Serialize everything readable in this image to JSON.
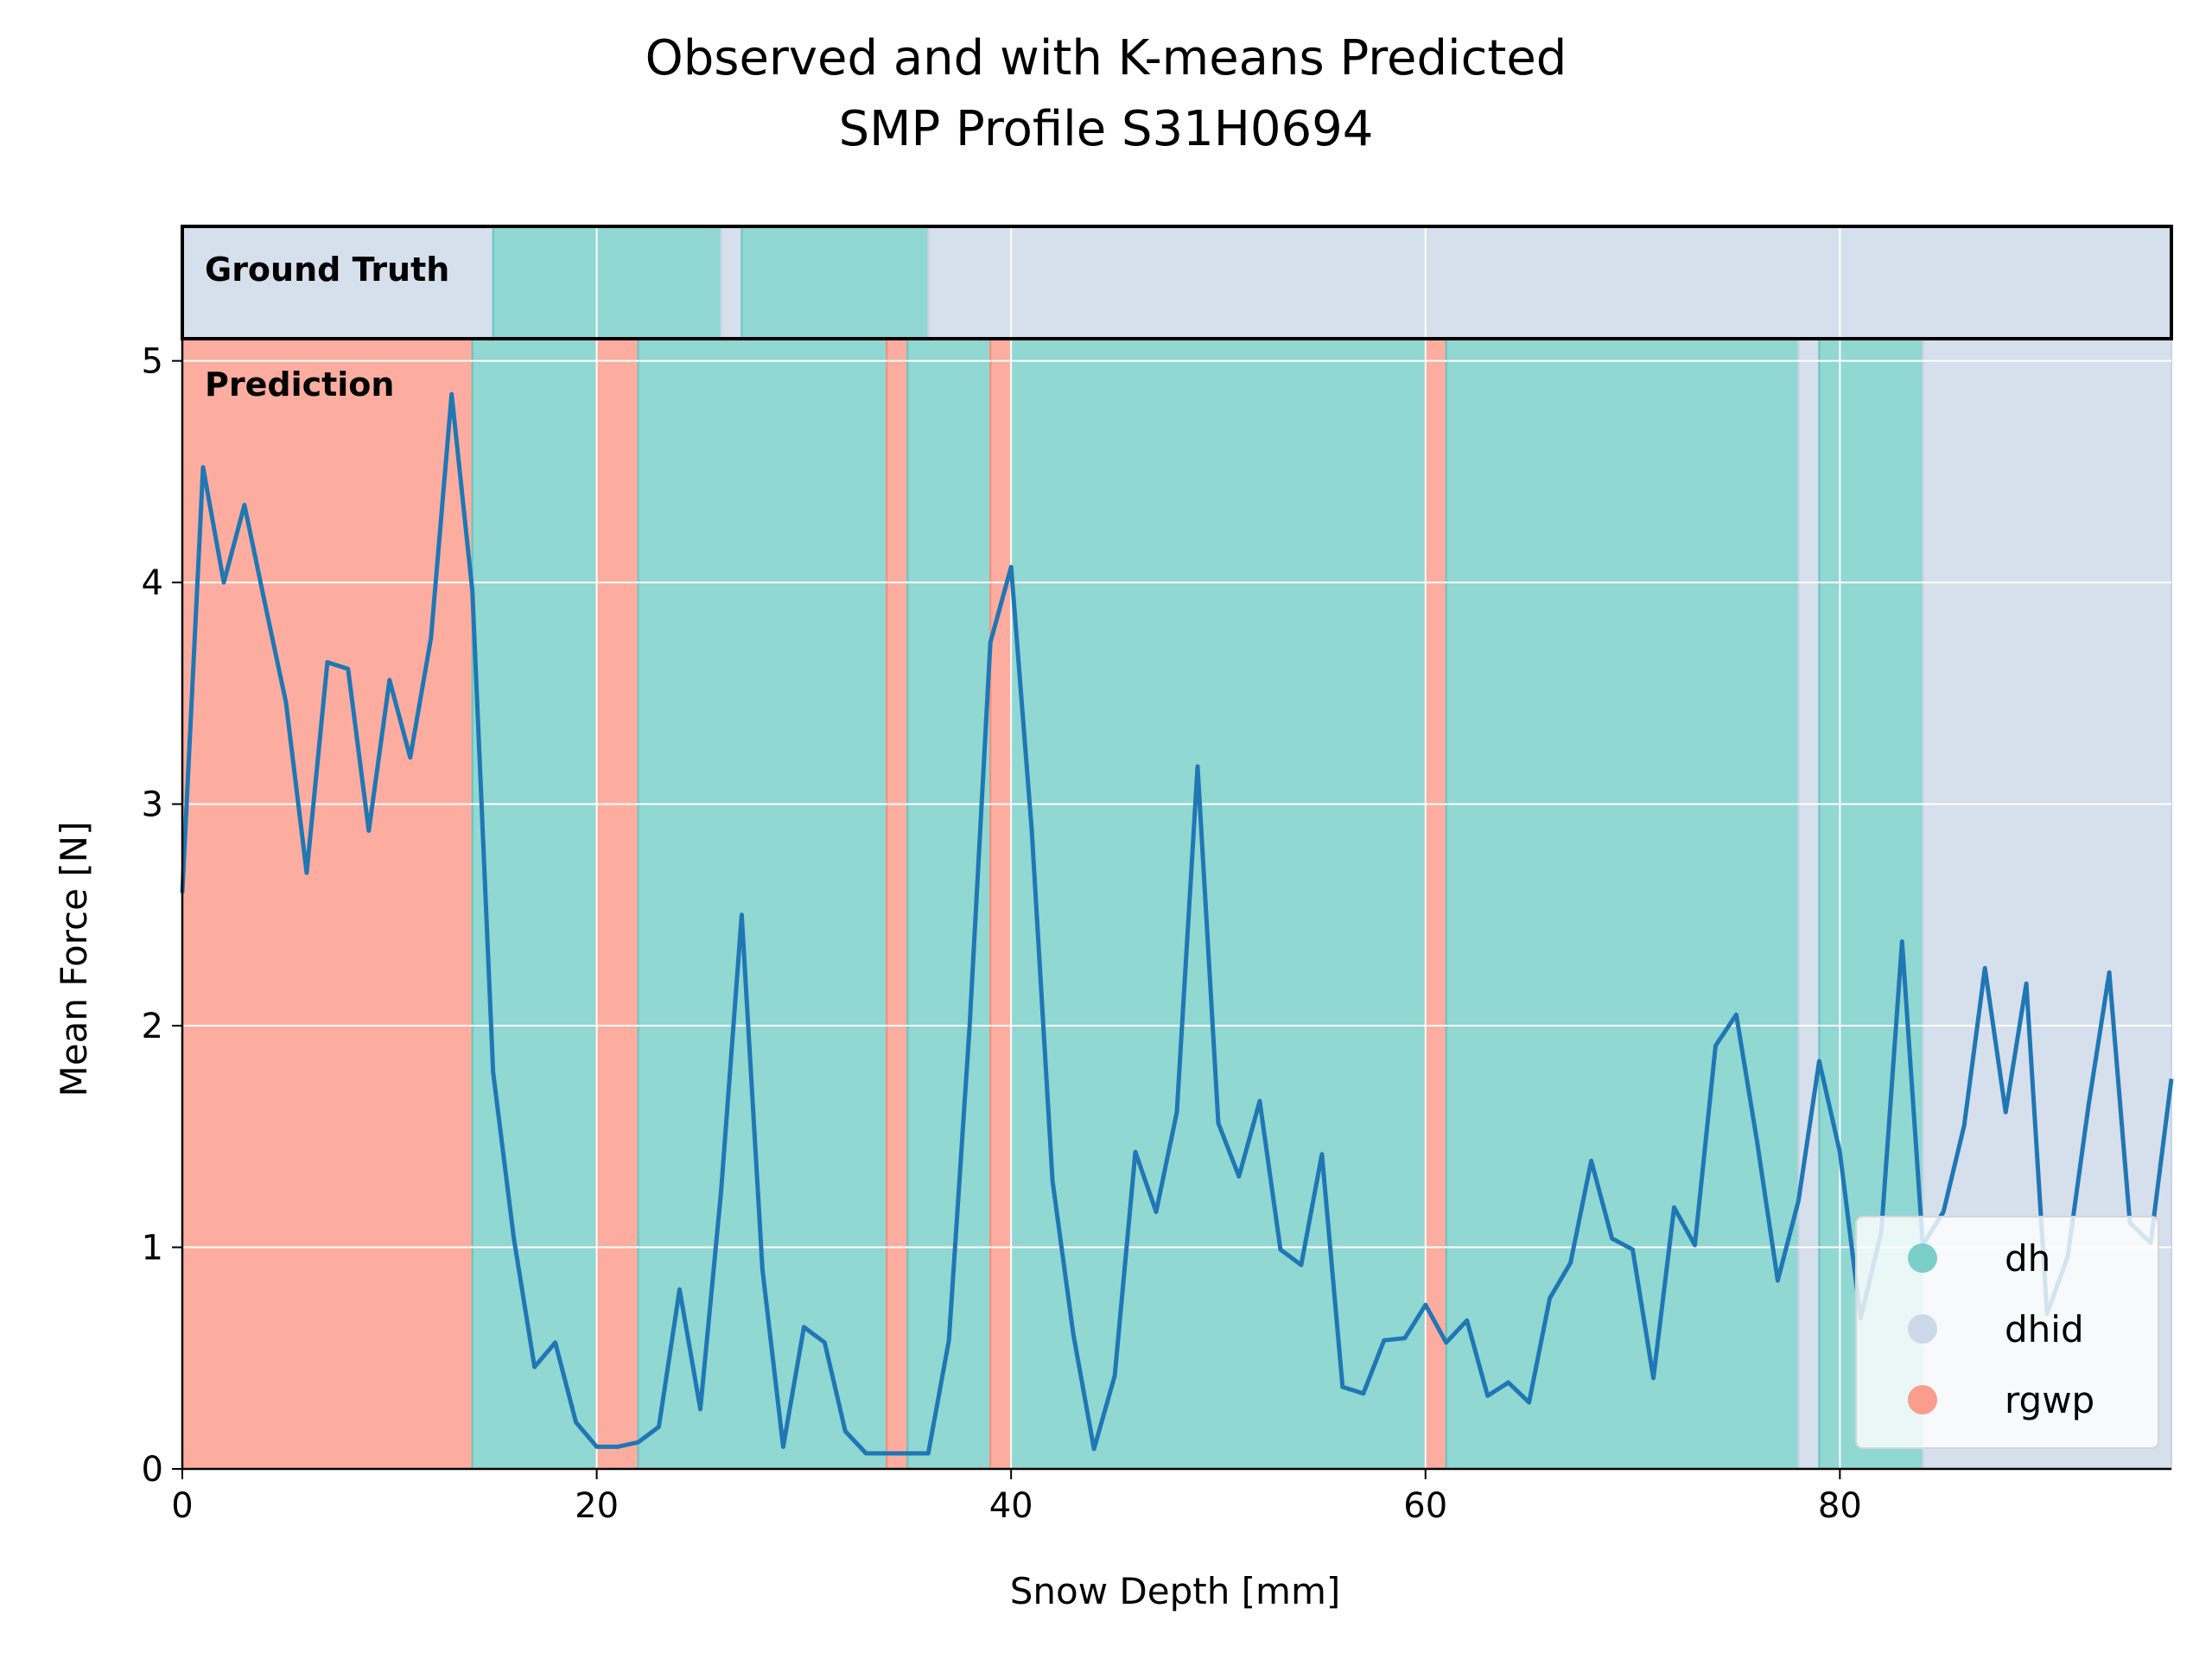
{
  "chart_data": {
    "type": "line",
    "title": [
      "Observed and with K-means Predicted",
      "SMP Profile S31H0694"
    ],
    "xlabel": "Snow Depth [mm]",
    "ylabel": "Mean Force [N]",
    "xlim": [
      0,
      96
    ],
    "ylim": [
      0,
      5.1
    ],
    "xticks": [
      0,
      20,
      40,
      60,
      80
    ],
    "yticks": [
      0,
      1,
      2,
      3,
      4,
      5
    ],
    "grid": true,
    "legend_position": "lower-right",
    "strip_labels": {
      "ground_truth": "Ground Truth",
      "prediction": "Prediction"
    },
    "classes": [
      {
        "name": "dh",
        "color": "#66c8c0"
      },
      {
        "name": "dhid",
        "color": "#c6d3e5"
      },
      {
        "name": "rgwp",
        "color": "#fc8d7a"
      }
    ],
    "line_color": "#1f77b4",
    "ground_truth_segments": [
      {
        "start": 0,
        "end": 15,
        "class": "dhid"
      },
      {
        "start": 15,
        "end": 26,
        "class": "dh"
      },
      {
        "start": 26,
        "end": 27,
        "class": "dhid"
      },
      {
        "start": 27,
        "end": 36,
        "class": "dh"
      },
      {
        "start": 36,
        "end": 96,
        "class": "dhid"
      }
    ],
    "prediction_segments": [
      {
        "start": 0,
        "end": 14,
        "class": "rgwp"
      },
      {
        "start": 14,
        "end": 20,
        "class": "dh"
      },
      {
        "start": 20,
        "end": 22,
        "class": "rgwp"
      },
      {
        "start": 22,
        "end": 34,
        "class": "dh"
      },
      {
        "start": 34,
        "end": 35,
        "class": "rgwp"
      },
      {
        "start": 35,
        "end": 39,
        "class": "dh"
      },
      {
        "start": 39,
        "end": 40,
        "class": "rgwp"
      },
      {
        "start": 40,
        "end": 60,
        "class": "dh"
      },
      {
        "start": 60,
        "end": 61,
        "class": "rgwp"
      },
      {
        "start": 61,
        "end": 78,
        "class": "dh"
      },
      {
        "start": 78,
        "end": 79,
        "class": "dhid"
      },
      {
        "start": 79,
        "end": 84,
        "class": "dh"
      },
      {
        "start": 84,
        "end": 96,
        "class": "dhid"
      }
    ],
    "series": [
      {
        "x": [
          0,
          1,
          2,
          3,
          4,
          5,
          6,
          7,
          8,
          9,
          10,
          11,
          12,
          13,
          14,
          15,
          16,
          17,
          18,
          19,
          20,
          21,
          22,
          23,
          24,
          25,
          26,
          27,
          28,
          29,
          30,
          31,
          32,
          33,
          34,
          35,
          36,
          37,
          38,
          39,
          40,
          41,
          42,
          43,
          44,
          45,
          46,
          47,
          48,
          49,
          50,
          51,
          52,
          53,
          54,
          55,
          56,
          57,
          58,
          59,
          60,
          61,
          62,
          63,
          64,
          65,
          66,
          67,
          68,
          69,
          70,
          71,
          72,
          73,
          74,
          75,
          76,
          77,
          78,
          79,
          80,
          81,
          82,
          83,
          84,
          85,
          86,
          87,
          88,
          89,
          90,
          91,
          92,
          93,
          94,
          95,
          96
        ],
        "values": [
          2.6,
          4.52,
          4.0,
          4.35,
          3.9,
          3.46,
          2.69,
          3.64,
          3.61,
          2.88,
          3.56,
          3.21,
          3.75,
          4.85,
          3.96,
          1.79,
          1.04,
          0.46,
          0.57,
          0.21,
          0.1,
          0.1,
          0.12,
          0.19,
          0.81,
          0.27,
          1.25,
          2.5,
          0.9,
          0.1,
          0.64,
          0.57,
          0.17,
          0.07,
          0.07,
          0.07,
          0.07,
          0.58,
          2.0,
          3.73,
          4.07,
          2.88,
          1.3,
          0.61,
          0.09,
          0.42,
          1.43,
          1.16,
          1.61,
          3.17,
          1.56,
          1.32,
          1.66,
          0.99,
          0.92,
          1.42,
          0.37,
          0.34,
          0.58,
          0.59,
          0.74,
          0.57,
          0.67,
          0.33,
          0.39,
          0.3,
          0.77,
          0.93,
          1.39,
          1.04,
          0.99,
          0.41,
          1.18,
          1.01,
          1.91,
          2.05,
          1.48,
          0.85,
          1.21,
          1.84,
          1.43,
          0.68,
          1.07,
          2.38,
          1.01,
          1.16,
          1.55,
          2.26,
          1.61,
          2.19,
          0.7,
          0.96,
          1.64,
          2.24,
          1.11,
          1.02,
          1.76
        ]
      }
    ]
  }
}
